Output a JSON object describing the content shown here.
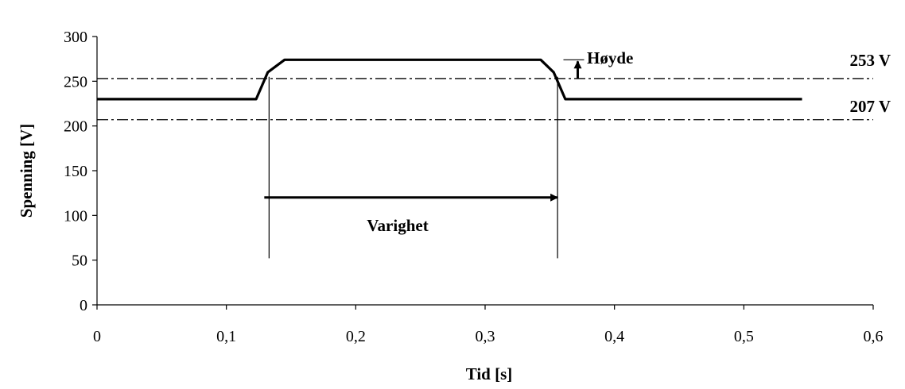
{
  "chart_data": {
    "type": "line",
    "xlabel": "Tid [s]",
    "ylabel": "Spenning [V]",
    "xlim": [
      0,
      0.6
    ],
    "ylim": [
      0,
      300
    ],
    "x_ticks": [
      "0",
      "0,1",
      "0,2",
      "0,3",
      "0,4",
      "0,5",
      "0,6"
    ],
    "y_ticks": [
      "0",
      "50",
      "100",
      "150",
      "200",
      "250",
      "300"
    ],
    "grid": false,
    "series": [
      {
        "x": [
          0,
          0.123,
          0.132,
          0.145,
          0.343,
          0.353,
          0.362,
          0.545
        ],
        "y": [
          230,
          230,
          260,
          274,
          274,
          260,
          230,
          230
        ],
        "color": "#000000"
      }
    ],
    "reference_lines": [
      {
        "y": 253,
        "label": "253 V",
        "style": "dash-dot"
      },
      {
        "y": 207,
        "label": "207 V",
        "style": "dash-dot"
      }
    ],
    "annotations": {
      "height_label": "Høyde",
      "duration_label": "Varighet",
      "duration_start_x": 0.133,
      "duration_end_x": 0.356,
      "duration_arrow_y": 120,
      "marker_bottom_y": 52,
      "height_marker_x": 0.363
    }
  }
}
